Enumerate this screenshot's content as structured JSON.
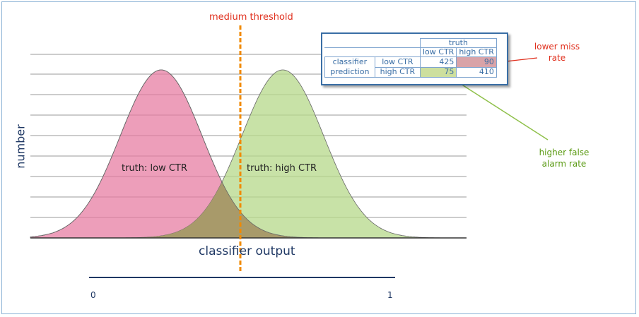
{
  "threshold_label": "medium threshold",
  "y_axis_label": "number",
  "x_axis_label": "classifier output",
  "distributions": [
    {
      "label": "truth: low CTR",
      "color": "#e6789f"
    },
    {
      "label": "truth: high CTR",
      "color": "#b5d88a"
    }
  ],
  "overlap_color": "#a89a6a",
  "scale": {
    "min_label": "0",
    "max_label": "1"
  },
  "confusion_matrix": {
    "column_group": "truth",
    "columns": [
      "low CTR",
      "high CTR"
    ],
    "row_group_line1": "classifier",
    "row_group_line2": "prediction",
    "rows": [
      {
        "label": "low CTR",
        "values": [
          "425",
          "90"
        ]
      },
      {
        "label": "high CTR",
        "values": [
          "75",
          "410"
        ]
      }
    ]
  },
  "annotations": {
    "miss_line1": "lower miss",
    "miss_line2": "rate",
    "fa_line1": "higher false",
    "fa_line2": "alarm rate"
  },
  "colors": {
    "threshold": "#f08a00",
    "miss": "#e0301e",
    "false_alarm": "#8fc04a",
    "axis": "#1f3864"
  }
}
